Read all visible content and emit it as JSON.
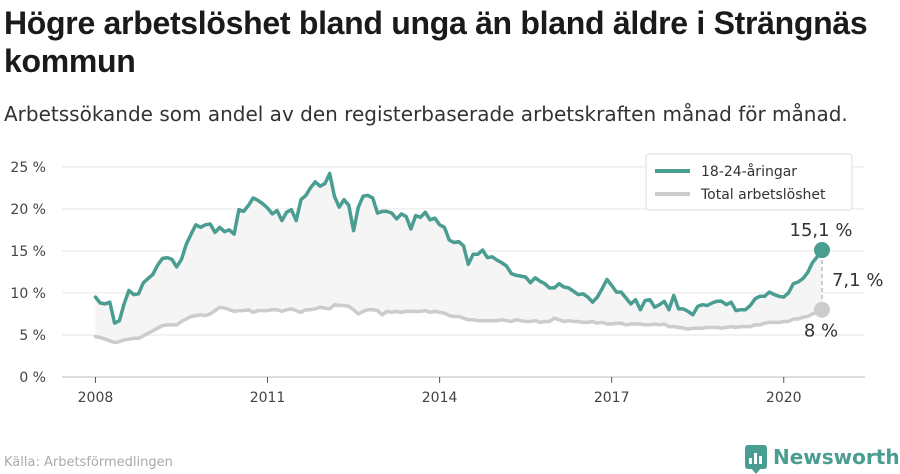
{
  "title": "Högre arbetslöshet bland unga än bland äldre i Strängnäs kommun",
  "subtitle": "Arbetssökande som andel av den registerbaserade arbetskraften månad för månad.",
  "source": "Källa: Arbetsförmedlingen",
  "brand": {
    "name": "Newsworthy",
    "icon": "newsworthy-logo-icon",
    "color": "#4a9d91"
  },
  "annotations": {
    "youth_last": "15,1 %",
    "total_last": "8 %",
    "gap": "7,1 %"
  },
  "colors": {
    "youth": "#4a9d91",
    "total": "#cccccc",
    "band": "#f5f5f5",
    "grid": "#e6e6e6"
  },
  "chart_data": {
    "type": "line",
    "title": "Högre arbetslöshet bland unga än bland äldre i Strängnäs kommun",
    "subtitle": "Arbetssökande som andel av den registerbaserade arbetskraften månad för månad.",
    "xlabel": "",
    "ylabel": "",
    "x_start": "2008-01",
    "x_ticks": [
      {
        "year": 2008,
        "label": "2008"
      },
      {
        "year": 2011,
        "label": "2011"
      },
      {
        "year": 2014,
        "label": "2014"
      },
      {
        "year": 2017,
        "label": "2017"
      },
      {
        "year": 2020,
        "label": "2020"
      }
    ],
    "y_ticks": [
      {
        "value": 0,
        "label": "0 %"
      },
      {
        "value": 5,
        "label": "5 %"
      },
      {
        "value": 10,
        "label": "10 %"
      },
      {
        "value": 15,
        "label": "15 %"
      },
      {
        "value": 20,
        "label": "20 %"
      },
      {
        "value": 25,
        "label": "25 %"
      }
    ],
    "xlim": [
      "2007-06",
      "2021-06"
    ],
    "ylim": [
      0,
      27
    ],
    "grid": true,
    "legend_position": "top-right",
    "series": [
      {
        "name": "18-24-åringar",
        "color": "#4a9d91",
        "values": [
          9.5,
          8.8,
          8.7,
          8.9,
          6.4,
          6.7,
          8.7,
          10.3,
          9.8,
          9.9,
          11.2,
          11.7,
          12.2,
          13.3,
          14.1,
          14.2,
          14.0,
          13.1,
          14.0,
          15.8,
          17.0,
          18.1,
          17.8,
          18.1,
          18.2,
          17.2,
          17.8,
          17.3,
          17.5,
          17.0,
          19.9,
          19.7,
          20.4,
          21.3,
          21.0,
          20.6,
          20.1,
          19.4,
          19.8,
          18.6,
          19.6,
          19.9,
          18.6,
          21.1,
          21.6,
          22.5,
          23.2,
          22.7,
          23.0,
          24.2,
          21.5,
          20.2,
          21.1,
          20.4,
          17.4,
          20.2,
          21.5,
          21.6,
          21.3,
          19.5,
          19.7,
          19.7,
          19.5,
          18.8,
          19.4,
          19.1,
          17.6,
          19.2,
          19.0,
          19.6,
          18.7,
          18.9,
          18.1,
          17.8,
          16.3,
          16.0,
          16.1,
          15.6,
          13.4,
          14.6,
          14.6,
          15.1,
          14.2,
          14.3,
          13.9,
          13.6,
          13.2,
          12.3,
          12.1,
          12.0,
          11.9,
          11.2,
          11.8,
          11.4,
          11.1,
          10.6,
          10.6,
          11.1,
          10.7,
          10.6,
          10.2,
          9.8,
          9.9,
          9.5,
          8.9,
          9.5,
          10.5,
          11.6,
          10.9,
          10.1,
          10.1,
          9.4,
          8.7,
          9.2,
          8.0,
          9.1,
          9.2,
          8.3,
          8.6,
          9.0,
          8.0,
          9.7,
          8.1,
          8.1,
          7.8,
          7.4,
          8.4,
          8.6,
          8.5,
          8.8,
          9.0,
          9.0,
          8.6,
          8.9,
          7.9,
          8.0,
          8.0,
          8.5,
          9.3,
          9.6,
          9.6,
          10.1,
          9.8,
          9.6,
          9.5,
          10.0,
          11.1,
          11.3,
          11.7,
          12.4,
          13.6,
          14.3,
          15.1
        ]
      },
      {
        "name": "Total arbetslöshet",
        "color": "#cccccc",
        "values": [
          4.8,
          4.7,
          4.5,
          4.3,
          4.1,
          4.2,
          4.4,
          4.5,
          4.6,
          4.6,
          4.9,
          5.2,
          5.5,
          5.8,
          6.1,
          6.2,
          6.2,
          6.2,
          6.6,
          6.9,
          7.2,
          7.3,
          7.4,
          7.3,
          7.5,
          7.9,
          8.3,
          8.2,
          8.0,
          7.8,
          7.9,
          7.9,
          8.0,
          7.7,
          7.9,
          7.9,
          7.9,
          8.0,
          8.0,
          7.8,
          8.0,
          8.1,
          7.9,
          7.7,
          8.0,
          8.0,
          8.1,
          8.3,
          8.2,
          8.1,
          8.6,
          8.5,
          8.5,
          8.4,
          8.0,
          7.5,
          7.8,
          8.0,
          8.0,
          7.9,
          7.4,
          7.8,
          7.7,
          7.8,
          7.7,
          7.8,
          7.8,
          7.8,
          7.8,
          7.9,
          7.7,
          7.8,
          7.7,
          7.6,
          7.3,
          7.2,
          7.2,
          7.0,
          6.8,
          6.8,
          6.7,
          6.7,
          6.7,
          6.7,
          6.7,
          6.8,
          6.7,
          6.6,
          6.8,
          6.7,
          6.6,
          6.6,
          6.7,
          6.5,
          6.6,
          6.6,
          7.0,
          6.8,
          6.6,
          6.7,
          6.6,
          6.6,
          6.5,
          6.5,
          6.6,
          6.4,
          6.5,
          6.3,
          6.3,
          6.4,
          6.4,
          6.2,
          6.3,
          6.3,
          6.3,
          6.2,
          6.2,
          6.3,
          6.2,
          6.3,
          6.0,
          6.0,
          5.9,
          5.8,
          5.7,
          5.8,
          5.8,
          5.8,
          5.9,
          5.9,
          5.9,
          5.8,
          5.9,
          6.0,
          5.9,
          6.0,
          6.0,
          6.0,
          6.2,
          6.2,
          6.4,
          6.5,
          6.5,
          6.5,
          6.6,
          6.6,
          6.9,
          6.9,
          7.1,
          7.2,
          7.5,
          7.7,
          8.0
        ]
      }
    ]
  }
}
